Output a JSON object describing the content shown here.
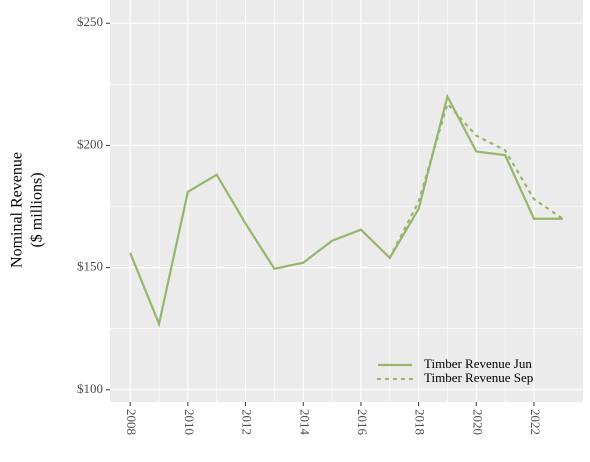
{
  "chart_data": {
    "type": "line",
    "ylabel": [
      "Nominal Revenue",
      "($ millions)"
    ],
    "x": [
      2008,
      2009,
      2010,
      2011,
      2012,
      2013,
      2014,
      2015,
      2016,
      2017,
      2018,
      2019,
      2020,
      2021,
      2022,
      2023
    ],
    "series": [
      {
        "name": "Timber Revenue Jun",
        "color": "#97b56b",
        "dash": "solid",
        "values": [
          156,
          127,
          181,
          188,
          168,
          149.5,
          152,
          161,
          165.5,
          154,
          174,
          220,
          197.5,
          196,
          170,
          170
        ]
      },
      {
        "name": "Timber Revenue Sep",
        "color": "#97b56b",
        "dash": "dotted",
        "values": [
          null,
          null,
          null,
          null,
          null,
          null,
          null,
          null,
          null,
          154,
          177,
          217,
          204,
          198,
          178,
          170
        ]
      }
    ],
    "xlim": [
      2007.3,
      2023.7
    ],
    "xticks": [
      2008,
      2010,
      2012,
      2014,
      2016,
      2018,
      2020,
      2022
    ],
    "ylim": [
      95,
      259.5
    ],
    "yticks": [
      {
        "value": 100,
        "label": "$100"
      },
      {
        "value": 150,
        "label": "$150"
      },
      {
        "value": 200,
        "label": "$200"
      },
      {
        "value": 250,
        "label": "$250"
      }
    ],
    "grid": true,
    "legend": "bottom-right"
  }
}
